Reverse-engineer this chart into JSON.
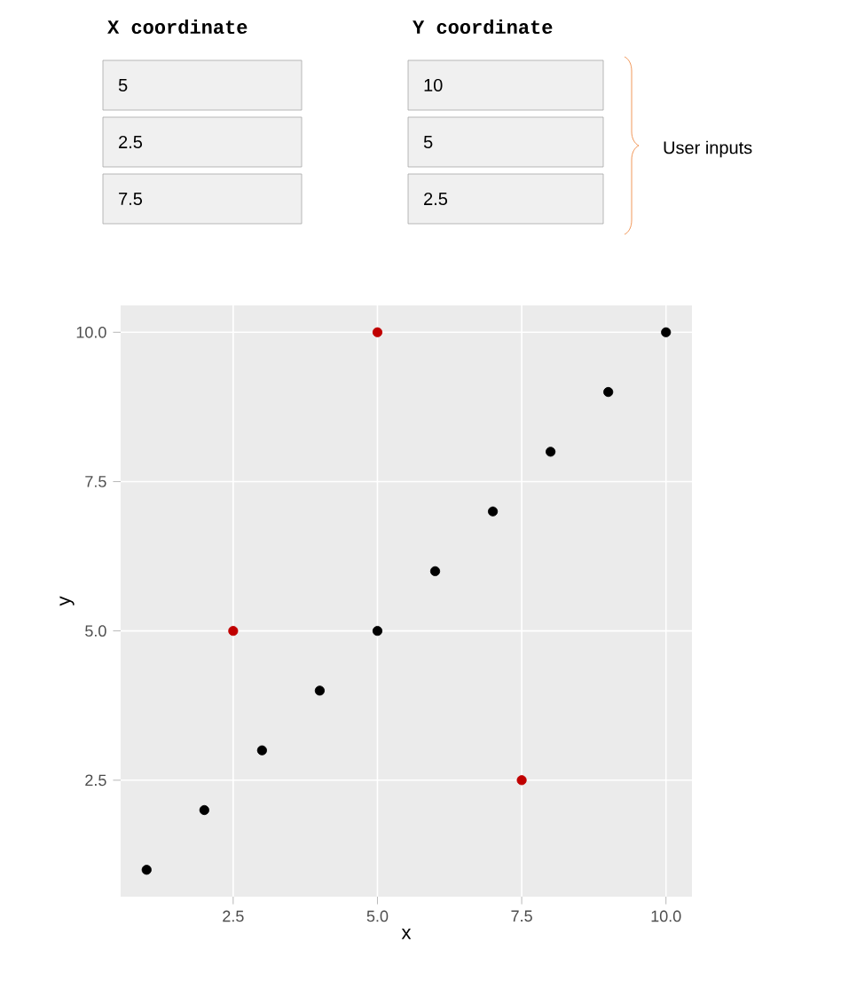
{
  "chart_data": {
    "type": "scatter",
    "xlabel": "x",
    "ylabel": "y",
    "xlim": [
      0.55,
      10.45
    ],
    "ylim": [
      0.55,
      10.45
    ],
    "xticks": [
      2.5,
      {
        "value": 5,
        "label": "5.0"
      },
      7.5,
      {
        "value": 10,
        "label": "10.0"
      }
    ],
    "yticks": [
      2.5,
      {
        "value": 5,
        "label": "5.0"
      },
      7.5,
      {
        "value": 10,
        "label": "10.0"
      }
    ],
    "grid": true,
    "marker": "circle",
    "annotations": [
      "X coordinate",
      "Y coordinate",
      "5",
      "2.5",
      "7.5",
      "10",
      "5",
      "2.5",
      "User inputs"
    ],
    "series": [
      {
        "color": "#000000",
        "x": [
          1,
          2,
          3,
          4,
          5,
          6,
          7,
          8,
          9,
          10
        ],
        "values": [
          1,
          2,
          3,
          4,
          5,
          6,
          7,
          8,
          9,
          10
        ]
      },
      {
        "color": "#c00000",
        "x": [
          5,
          2.5,
          7.5
        ],
        "values": [
          10,
          5,
          2.5
        ]
      }
    ]
  }
}
